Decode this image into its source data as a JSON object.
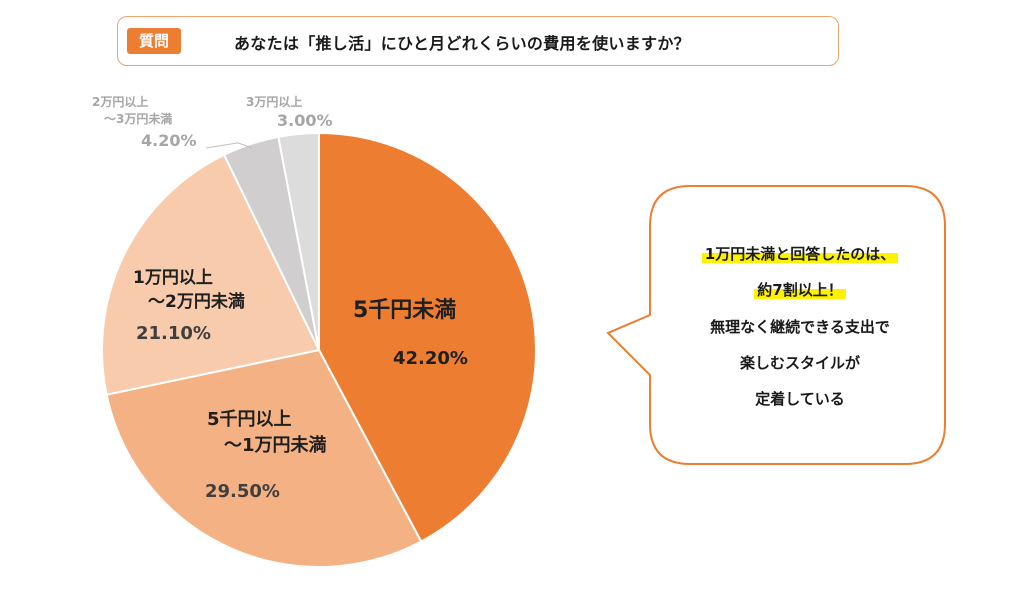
{
  "question": {
    "badge": "質問",
    "text": "あなたは「推し活」にひと月どれくらいの費用を使いますか？"
  },
  "chart_data": {
    "type": "pie",
    "categories": [
      "5千円未満",
      "5千円以上〜1万円未満",
      "1万円以上〜2万円未満",
      "2万円以上〜3万円未満",
      "3万円以上"
    ],
    "values": [
      42.2,
      29.5,
      21.1,
      4.2,
      3.0
    ],
    "value_labels": [
      "42.20%",
      "29.50%",
      "21.10%",
      "4.20%",
      "3.00%"
    ],
    "colors": [
      "#ed7d31",
      "#f4b183",
      "#f8cbad",
      "#d0cece",
      "#dcdcdc"
    ],
    "start_angle_deg": 0,
    "direction": "clockwise"
  },
  "labels": {
    "s0": {
      "line1": "5千円未満",
      "value": "42.20%"
    },
    "s1": {
      "line1": "5千円以上",
      "line2": "〜1万円未満",
      "value": "29.50%"
    },
    "s2": {
      "line1": "1万円以上",
      "line2": "〜2万円未満",
      "value": "21.10%"
    },
    "s3": {
      "line1": "2万円以上",
      "line2": "〜3万円未満",
      "value": "4.20%"
    },
    "s4": {
      "line1": "3万円以上",
      "value": "3.00%"
    }
  },
  "callout": {
    "line1": "1万円未満と回答したのは、",
    "line2": "約7割以上！",
    "line3": "無理なく継続できる支出で",
    "line4": "楽しむスタイルが",
    "line5": "定着している",
    "highlight_color": "#fff200",
    "border_color": "#ed7d31"
  }
}
